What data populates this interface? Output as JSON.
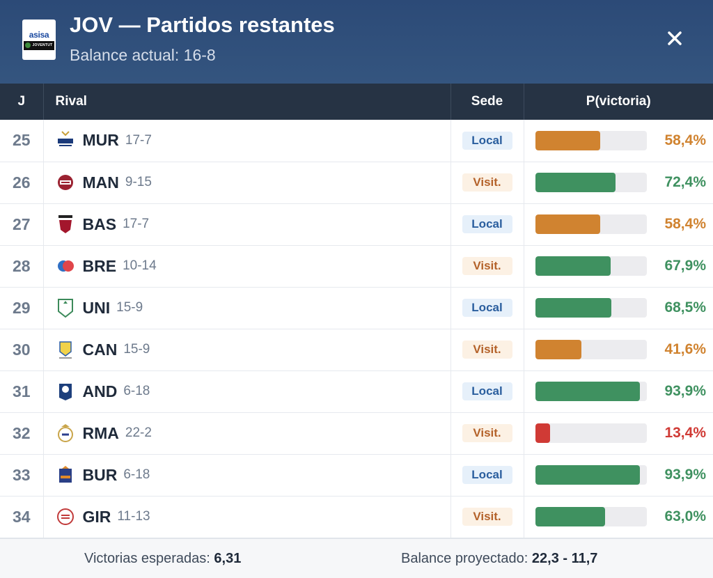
{
  "header": {
    "title": "JOV — Partidos restantes",
    "subtitle": "Balance actual: 16-8",
    "logo_text_top": "asisa",
    "logo_text_bottom": "JOVENTUT",
    "close_icon": "close-icon"
  },
  "table": {
    "headers": {
      "j": "J",
      "rival": "Rival",
      "sede": "Sede",
      "prob": "P(victoria)"
    },
    "rows": [
      {
        "j": "25",
        "abbr": "MUR",
        "record": "17-7",
        "sede": "Local",
        "sede_type": "local",
        "prob_text": "58,4%",
        "prob": 58.4,
        "color": "#d08330",
        "logo": "ucam-murcia-logo"
      },
      {
        "j": "26",
        "abbr": "MAN",
        "record": "9-15",
        "sede": "Visit.",
        "sede_type": "visit",
        "prob_text": "72,4%",
        "prob": 72.4,
        "color": "#3f9160",
        "logo": "baxi-manresa-logo"
      },
      {
        "j": "27",
        "abbr": "BAS",
        "record": "17-7",
        "sede": "Local",
        "sede_type": "local",
        "prob_text": "58,4%",
        "prob": 58.4,
        "color": "#d08330",
        "logo": "baskonia-logo"
      },
      {
        "j": "28",
        "abbr": "BRE",
        "record": "10-14",
        "sede": "Visit.",
        "sede_type": "visit",
        "prob_text": "67,9%",
        "prob": 67.9,
        "color": "#3f9160",
        "logo": "breogan-logo"
      },
      {
        "j": "29",
        "abbr": "UNI",
        "record": "15-9",
        "sede": "Local",
        "sede_type": "local",
        "prob_text": "68,5%",
        "prob": 68.5,
        "color": "#3f9160",
        "logo": "unicaja-logo"
      },
      {
        "j": "30",
        "abbr": "CAN",
        "record": "15-9",
        "sede": "Visit.",
        "sede_type": "visit",
        "prob_text": "41,6%",
        "prob": 41.6,
        "color": "#d08330",
        "logo": "canarias-logo"
      },
      {
        "j": "31",
        "abbr": "AND",
        "record": "6-18",
        "sede": "Local",
        "sede_type": "local",
        "prob_text": "93,9%",
        "prob": 93.9,
        "color": "#3f9160",
        "logo": "andorra-logo"
      },
      {
        "j": "32",
        "abbr": "RMA",
        "record": "22-2",
        "sede": "Visit.",
        "sede_type": "visit",
        "prob_text": "13,4%",
        "prob": 13.4,
        "color": "#d03a35",
        "logo": "real-madrid-logo"
      },
      {
        "j": "33",
        "abbr": "BUR",
        "record": "6-18",
        "sede": "Local",
        "sede_type": "local",
        "prob_text": "93,9%",
        "prob": 93.9,
        "color": "#3f9160",
        "logo": "burgos-logo"
      },
      {
        "j": "34",
        "abbr": "GIR",
        "record": "11-13",
        "sede": "Visit.",
        "sede_type": "visit",
        "prob_text": "63,0%",
        "prob": 63.0,
        "color": "#3f9160",
        "logo": "girona-logo"
      }
    ]
  },
  "footer": {
    "expected_label": "Victorias esperadas:",
    "expected_value": "6,31",
    "projected_label": "Balance proyectado:",
    "projected_value": "22,3 - 11,7"
  }
}
